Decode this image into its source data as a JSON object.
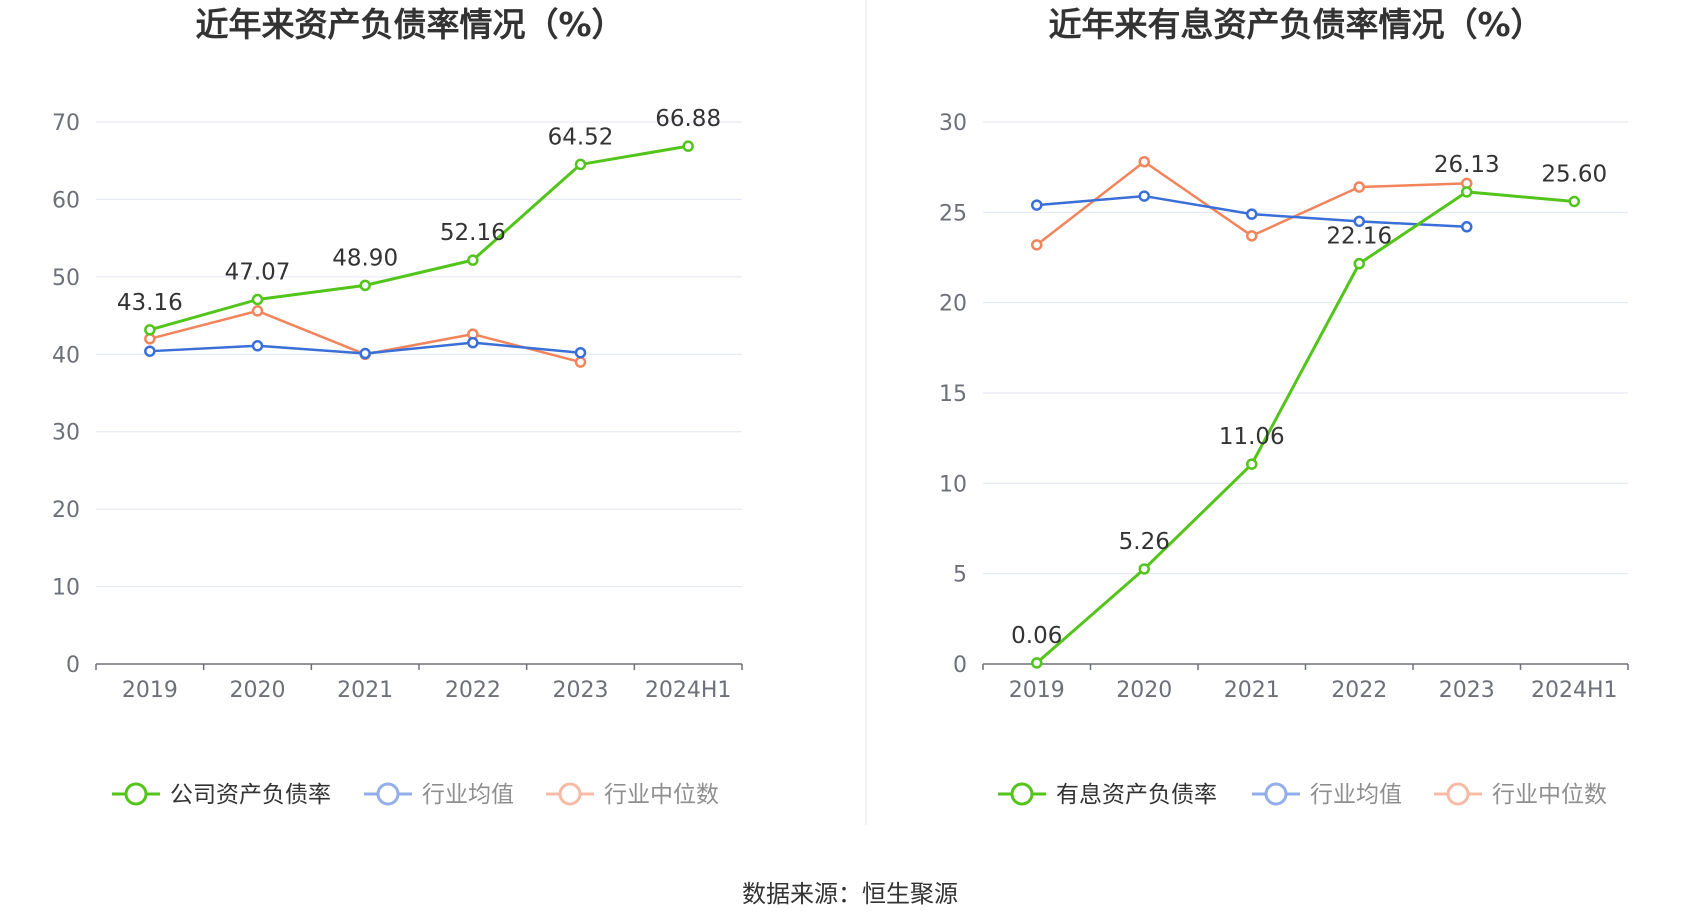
{
  "source": "数据来源：恒生聚源",
  "chart_data": [
    {
      "type": "line",
      "title": "近年来资产负债率情况（%）",
      "categories": [
        "2019",
        "2020",
        "2021",
        "2022",
        "2023",
        "2024H1"
      ],
      "ylim": [
        0,
        70
      ],
      "yticks": [
        "0",
        "10",
        "20",
        "30",
        "40",
        "50",
        "60",
        "70"
      ],
      "grid": true,
      "legend_position": "bottom",
      "series": [
        {
          "name": "公司资产负债率",
          "color": "#52c41a",
          "values": [
            43.16,
            47.07,
            48.9,
            52.16,
            64.52,
            66.88
          ],
          "labels": [
            "43.16",
            "47.07",
            "48.90",
            "52.16",
            "64.52",
            "66.88"
          ],
          "legend_active": true
        },
        {
          "name": "行业均值",
          "color": "#3a6fd8",
          "values": [
            40.4,
            41.1,
            40.1,
            41.5,
            40.2,
            null
          ],
          "legend_active": false
        },
        {
          "name": "行业中位数",
          "color": "#f2845c",
          "values": [
            42.0,
            45.6,
            40.0,
            42.6,
            39.0,
            null
          ],
          "legend_active": false
        }
      ]
    },
    {
      "type": "line",
      "title": "近年来有息资产负债率情况（%）",
      "categories": [
        "2019",
        "2020",
        "2021",
        "2022",
        "2023",
        "2024H1"
      ],
      "ylim": [
        0,
        30
      ],
      "yticks": [
        "0",
        "5",
        "10",
        "15",
        "20",
        "25",
        "30"
      ],
      "grid": true,
      "legend_position": "bottom",
      "series": [
        {
          "name": "有息资产负债率",
          "color": "#52c41a",
          "values": [
            0.06,
            5.26,
            11.06,
            22.16,
            26.13,
            25.6
          ],
          "labels": [
            "0.06",
            "5.26",
            "11.06",
            "22.16",
            "26.13",
            "25.60"
          ],
          "legend_active": true
        },
        {
          "name": "行业均值",
          "color": "#3a6fd8",
          "values": [
            25.4,
            25.9,
            24.9,
            24.5,
            24.2,
            null
          ],
          "legend_active": false
        },
        {
          "name": "行业中位数",
          "color": "#f2845c",
          "values": [
            23.2,
            27.8,
            23.7,
            26.4,
            26.6,
            null
          ],
          "legend_active": false
        }
      ]
    }
  ]
}
